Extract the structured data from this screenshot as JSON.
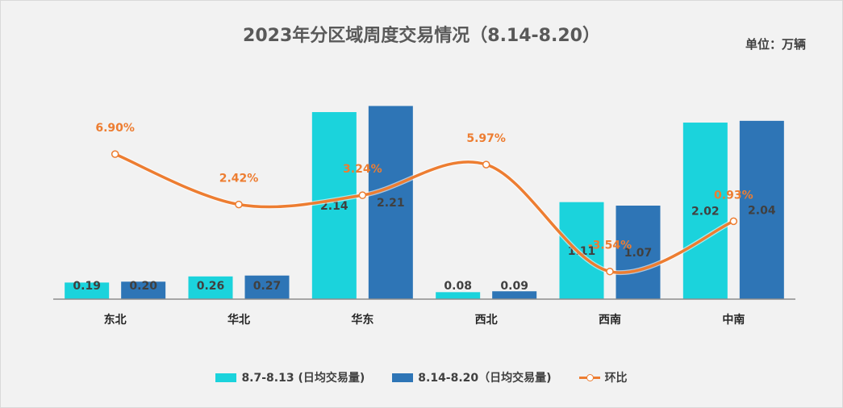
{
  "chart_data": {
    "type": "bar",
    "title": "2023年分区域周度交易情况（8.14-8.20）",
    "unit_label": "单位：万辆",
    "categories": [
      "东北",
      "华北",
      "华东",
      "西北",
      "西南",
      "中南"
    ],
    "series": [
      {
        "name": "8.7-8.13 (日均交易量)",
        "values": [
          0.19,
          0.26,
          2.14,
          0.08,
          1.11,
          2.02
        ],
        "color": "#1bd3dc"
      },
      {
        "name": "8.14-8.20（日均交易量)",
        "values": [
          0.2,
          0.27,
          2.21,
          0.09,
          1.07,
          2.04
        ],
        "color": "#2e75b6"
      }
    ],
    "line_series": {
      "name": "环比",
      "values": [
        6.9,
        2.42,
        3.24,
        5.97,
        -3.54,
        0.93
      ],
      "labels": [
        "6.90%",
        "2.42%",
        "3.24%",
        "5.97%",
        "-3.54%",
        "0.93%"
      ],
      "color": "#ed7d31"
    },
    "bar_labels": [
      [
        "0.19",
        "0.26",
        "2.14",
        "0.08",
        "1.11",
        "2.02"
      ],
      [
        "0.20",
        "0.27",
        "2.21",
        "0.09",
        "1.07",
        "2.04"
      ]
    ],
    "ylim": [
      0,
      2.5
    ],
    "line_ylim": [
      -6,
      12
    ]
  }
}
